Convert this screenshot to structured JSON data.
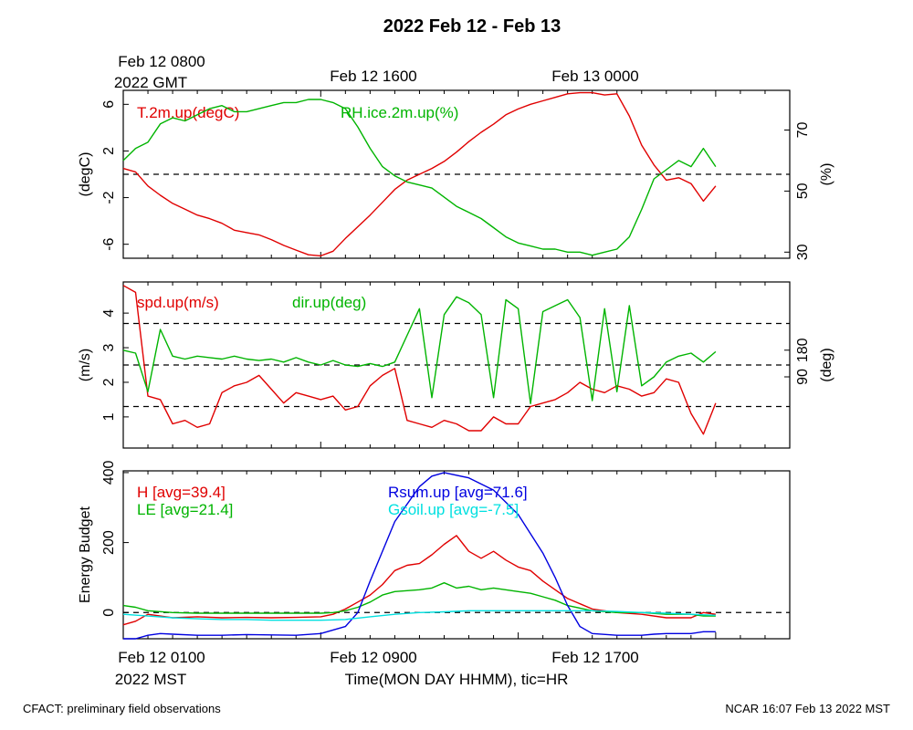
{
  "title": "2022 Feb 12 - Feb 13",
  "top_axis": {
    "ticks": [
      {
        "label": "Feb 12 0800",
        "sublabel": "2022 GMT"
      },
      {
        "label": "Feb 12 1600"
      },
      {
        "label": "Feb 13 0000"
      }
    ]
  },
  "bottom_axis": {
    "ticks": [
      {
        "label": "Feb 12 0100",
        "sublabel": "2022 MST"
      },
      {
        "label": "Feb 12 0900"
      },
      {
        "label": "Feb 12 1700"
      }
    ],
    "xlabel": "Time(MON DAY HHMM), tic=HR"
  },
  "footer": {
    "left": "CFACT: preliminary field observations",
    "right": "NCAR 16:07 Feb 13 2022 MST"
  },
  "colors": {
    "red": "#e00000",
    "green": "#00b400",
    "blue": "#0000e0",
    "cyan": "#00e0e0"
  },
  "chart_data": [
    {
      "type": "line",
      "panel": "temperature-humidity",
      "x_unit": "hours MST, Feb 12",
      "xlim": [
        1,
        28
      ],
      "ylabel": "(degC)",
      "ylim": [
        -7.2,
        7.2
      ],
      "yticks": [
        -6,
        -2,
        2,
        6
      ],
      "y2label": "(%)",
      "y2lim": [
        28,
        83
      ],
      "y2ticks": [
        30,
        50,
        70
      ],
      "reference_line": 0,
      "series": [
        {
          "name": "T.2m.up(degC)",
          "color": "red",
          "axis": "left",
          "x": [
            1,
            1.5,
            2,
            2.5,
            3,
            3.5,
            4,
            4.5,
            5,
            5.5,
            6,
            6.5,
            7,
            7.5,
            8,
            8.5,
            9,
            9.5,
            10,
            10.5,
            11,
            11.5,
            12,
            12.5,
            13,
            13.5,
            14,
            14.5,
            15,
            15.5,
            16,
            16.5,
            17,
            17.5,
            18,
            18.5,
            19,
            19.5,
            20,
            20.5,
            21,
            21.5,
            22,
            22.5,
            23,
            23.5,
            24,
            24.5,
            25
          ],
          "values": [
            0.5,
            0.2,
            -1.0,
            -1.8,
            -2.5,
            -3.0,
            -3.5,
            -3.8,
            -4.2,
            -4.8,
            -5.0,
            -5.2,
            -5.6,
            -6.1,
            -6.5,
            -6.9,
            -7.0,
            -6.6,
            -5.5,
            -4.5,
            -3.5,
            -2.4,
            -1.3,
            -0.5,
            0.0,
            0.5,
            1.1,
            1.9,
            2.8,
            3.6,
            4.3,
            5.1,
            5.6,
            6.0,
            6.3,
            6.6,
            6.9,
            7.0,
            7.0,
            6.8,
            6.9,
            5.0,
            2.5,
            0.8,
            -0.5,
            -0.3,
            -0.8,
            -2.3,
            -1.0
          ]
        },
        {
          "name": "RH.ice.2m.up(%)",
          "color": "green",
          "axis": "right",
          "x": [
            1,
            1.5,
            2,
            2.5,
            3,
            3.5,
            4,
            4.5,
            5,
            5.5,
            6,
            6.5,
            7,
            7.5,
            8,
            8.5,
            9,
            9.5,
            10,
            10.5,
            11,
            11.5,
            12,
            12.5,
            13,
            13.5,
            14,
            14.5,
            15,
            15.5,
            16,
            16.5,
            17,
            17.5,
            18,
            18.5,
            19,
            19.5,
            20,
            20.5,
            21,
            21.5,
            22,
            22.5,
            23,
            23.5,
            24,
            24.5,
            25
          ],
          "values": [
            60,
            64,
            66,
            72,
            74,
            73,
            75,
            77,
            78,
            76,
            76,
            77,
            78,
            79,
            79,
            80,
            80,
            79,
            77,
            71,
            64,
            58,
            55,
            53,
            52,
            51,
            48,
            45,
            43,
            41,
            38,
            35,
            33,
            32,
            31,
            31,
            30,
            30,
            29,
            30,
            31,
            35,
            44,
            54,
            57,
            60,
            58,
            64,
            58
          ]
        }
      ]
    },
    {
      "type": "line",
      "panel": "wind",
      "x_unit": "hours MST, Feb 12",
      "xlim": [
        1,
        28
      ],
      "ylabel": "(m/s)",
      "ylim": [
        0.1,
        4.9
      ],
      "yticks": [
        1,
        2,
        3,
        4
      ],
      "y2label": "(deg)",
      "y2lim": [
        -150,
        410
      ],
      "y2ticks": [
        90,
        180
      ],
      "reference_lines": [
        1.3,
        2.5,
        3.7
      ],
      "series": [
        {
          "name": "spd.up(m/s)",
          "color": "red",
          "axis": "left",
          "x": [
            1,
            1.5,
            2,
            2.5,
            3,
            3.5,
            4,
            4.5,
            5,
            5.5,
            6,
            6.5,
            7,
            7.5,
            8,
            8.5,
            9,
            9.5,
            10,
            10.5,
            11,
            11.5,
            12,
            12.5,
            13,
            13.5,
            14,
            14.5,
            15,
            15.5,
            16,
            16.5,
            17,
            17.5,
            18,
            18.5,
            19,
            19.5,
            20,
            20.5,
            21,
            21.5,
            22,
            22.5,
            23,
            23.5,
            24,
            24.5,
            25
          ],
          "values": [
            4.8,
            4.6,
            1.6,
            1.5,
            0.8,
            0.9,
            0.7,
            0.8,
            1.7,
            1.9,
            2.0,
            2.2,
            1.8,
            1.4,
            1.7,
            1.6,
            1.5,
            1.6,
            1.2,
            1.3,
            1.9,
            2.2,
            2.4,
            0.9,
            0.8,
            0.7,
            0.9,
            0.8,
            0.6,
            0.6,
            1.0,
            0.8,
            0.8,
            1.3,
            1.4,
            1.5,
            1.7,
            2.0,
            1.8,
            1.7,
            1.9,
            1.8,
            1.6,
            1.7,
            2.1,
            2.0,
            1.1,
            0.5,
            1.4
          ]
        },
        {
          "name": "dir.up(deg)",
          "color": "green",
          "axis": "right",
          "x": [
            1,
            1.5,
            2,
            2.5,
            3,
            3.5,
            4,
            4.5,
            5,
            5.5,
            6,
            6.5,
            7,
            7.5,
            8,
            8.5,
            9,
            9.5,
            10,
            10.5,
            11,
            11.5,
            12,
            12.5,
            13,
            13.5,
            14,
            14.5,
            15,
            15.5,
            16,
            16.5,
            17,
            17.5,
            18,
            18.5,
            19,
            19.5,
            20,
            20.5,
            21,
            21.5,
            22,
            22.5,
            23,
            23.5,
            24,
            24.5,
            25
          ],
          "values": [
            180,
            170,
            40,
            250,
            160,
            150,
            160,
            155,
            150,
            160,
            150,
            145,
            150,
            140,
            155,
            140,
            130,
            145,
            130,
            125,
            135,
            125,
            140,
            230,
            320,
            20,
            300,
            360,
            340,
            300,
            20,
            350,
            320,
            0,
            310,
            330,
            350,
            290,
            10,
            320,
            40,
            330,
            60,
            90,
            140,
            160,
            170,
            140,
            175
          ]
        }
      ]
    },
    {
      "type": "line",
      "panel": "energy-budget",
      "x_unit": "hours MST, Feb 12",
      "xlim": [
        1,
        28
      ],
      "ylabel": "Energy Budget",
      "ylim": [
        -75,
        405
      ],
      "yticks": [
        0,
        200,
        400
      ],
      "reference_line": 0,
      "series": [
        {
          "name": "H [avg=39.4]",
          "color": "red",
          "x": [
            1,
            1.5,
            2,
            3,
            4,
            5,
            6,
            7,
            8,
            9,
            9.5,
            10,
            10.5,
            11,
            11.5,
            12,
            12.5,
            13,
            13.5,
            14,
            14.5,
            15,
            15.5,
            16,
            16.5,
            17,
            17.5,
            18,
            18.5,
            19,
            20,
            21,
            22,
            23,
            24,
            24.5,
            25
          ],
          "values": [
            -35,
            -25,
            -5,
            -15,
            -12,
            -15,
            -14,
            -15,
            -14,
            -12,
            -5,
            10,
            30,
            50,
            80,
            120,
            135,
            140,
            165,
            195,
            220,
            175,
            155,
            175,
            150,
            130,
            120,
            90,
            65,
            40,
            10,
            0,
            -5,
            -15,
            -15,
            0,
            -5
          ]
        },
        {
          "name": "LE [avg=21.4]",
          "color": "green",
          "x": [
            1,
            1.5,
            2,
            3,
            4,
            5,
            6,
            7,
            8,
            9,
            9.5,
            10,
            10.5,
            11,
            11.5,
            12,
            13,
            13.5,
            14,
            14.5,
            15,
            15.5,
            16,
            17,
            17.5,
            18,
            18.5,
            19,
            20,
            21,
            22,
            23,
            24,
            24.5,
            25
          ],
          "values": [
            20,
            15,
            5,
            0,
            -2,
            -2,
            -2,
            -2,
            -2,
            -2,
            0,
            5,
            15,
            30,
            50,
            60,
            65,
            70,
            85,
            70,
            75,
            65,
            70,
            60,
            55,
            45,
            35,
            20,
            5,
            0,
            0,
            -5,
            -5,
            -10,
            -10
          ]
        },
        {
          "name": "Rsum.up [avg=71.6]",
          "color": "blue",
          "x": [
            1,
            1.5,
            2,
            2.5,
            3,
            4,
            5,
            6,
            7,
            8,
            9,
            9.5,
            10,
            10.5,
            11,
            12,
            13,
            13.5,
            14,
            15,
            16,
            17,
            18,
            18.5,
            19,
            19.5,
            20,
            21,
            22,
            22.5,
            23,
            24,
            24.5,
            25
          ],
          "values": [
            -80,
            -75,
            -65,
            -60,
            -62,
            -65,
            -65,
            -63,
            -64,
            -65,
            -60,
            -50,
            -40,
            0,
            90,
            260,
            360,
            390,
            400,
            385,
            350,
            280,
            170,
            100,
            20,
            -40,
            -60,
            -65,
            -65,
            -62,
            -60,
            -60,
            -55,
            -55
          ]
        },
        {
          "name": "Gsoil.up [avg=-7.5]",
          "color": "cyan",
          "x": [
            1,
            2,
            3,
            4,
            5,
            6,
            7,
            8,
            9,
            10,
            11,
            12,
            13,
            14,
            15,
            16,
            17,
            18,
            19,
            20,
            21,
            22,
            23,
            24,
            25
          ],
          "values": [
            -5,
            -10,
            -15,
            -18,
            -20,
            -20,
            -22,
            -22,
            -22,
            -20,
            -12,
            -5,
            0,
            2,
            5,
            5,
            5,
            5,
            5,
            5,
            3,
            0,
            -2,
            -5,
            -8
          ]
        }
      ]
    }
  ]
}
